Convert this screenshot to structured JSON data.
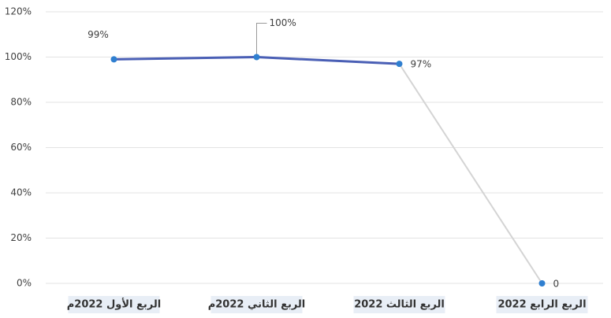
{
  "chart_data": {
    "type": "line",
    "categories": [
      "الربع الأول 2022م",
      "الربع الثاني 2022م",
      "الربع الثالث 2022",
      "الربع الرابع 2022"
    ],
    "series": [
      {
        "color": "#4a5fb5",
        "marker_color": "#2f7fd0",
        "segment_colors": [
          "#4a5fb5",
          "#4a5fb5",
          "#d4d4d4"
        ],
        "values": [
          99,
          100,
          97,
          0
        ],
        "value_labels": [
          "99%",
          "100%",
          "97%",
          "0"
        ]
      }
    ],
    "ylim": [
      0,
      120
    ],
    "yticks": [
      {
        "value": 0,
        "label": "0%"
      },
      {
        "value": 20,
        "label": "20%"
      },
      {
        "value": 40,
        "label": "40%"
      },
      {
        "value": 60,
        "label": "60%"
      },
      {
        "value": 80,
        "label": "80%"
      },
      {
        "value": 100,
        "label": "100%"
      },
      {
        "value": 120,
        "label": "120%"
      }
    ],
    "grid": true
  }
}
